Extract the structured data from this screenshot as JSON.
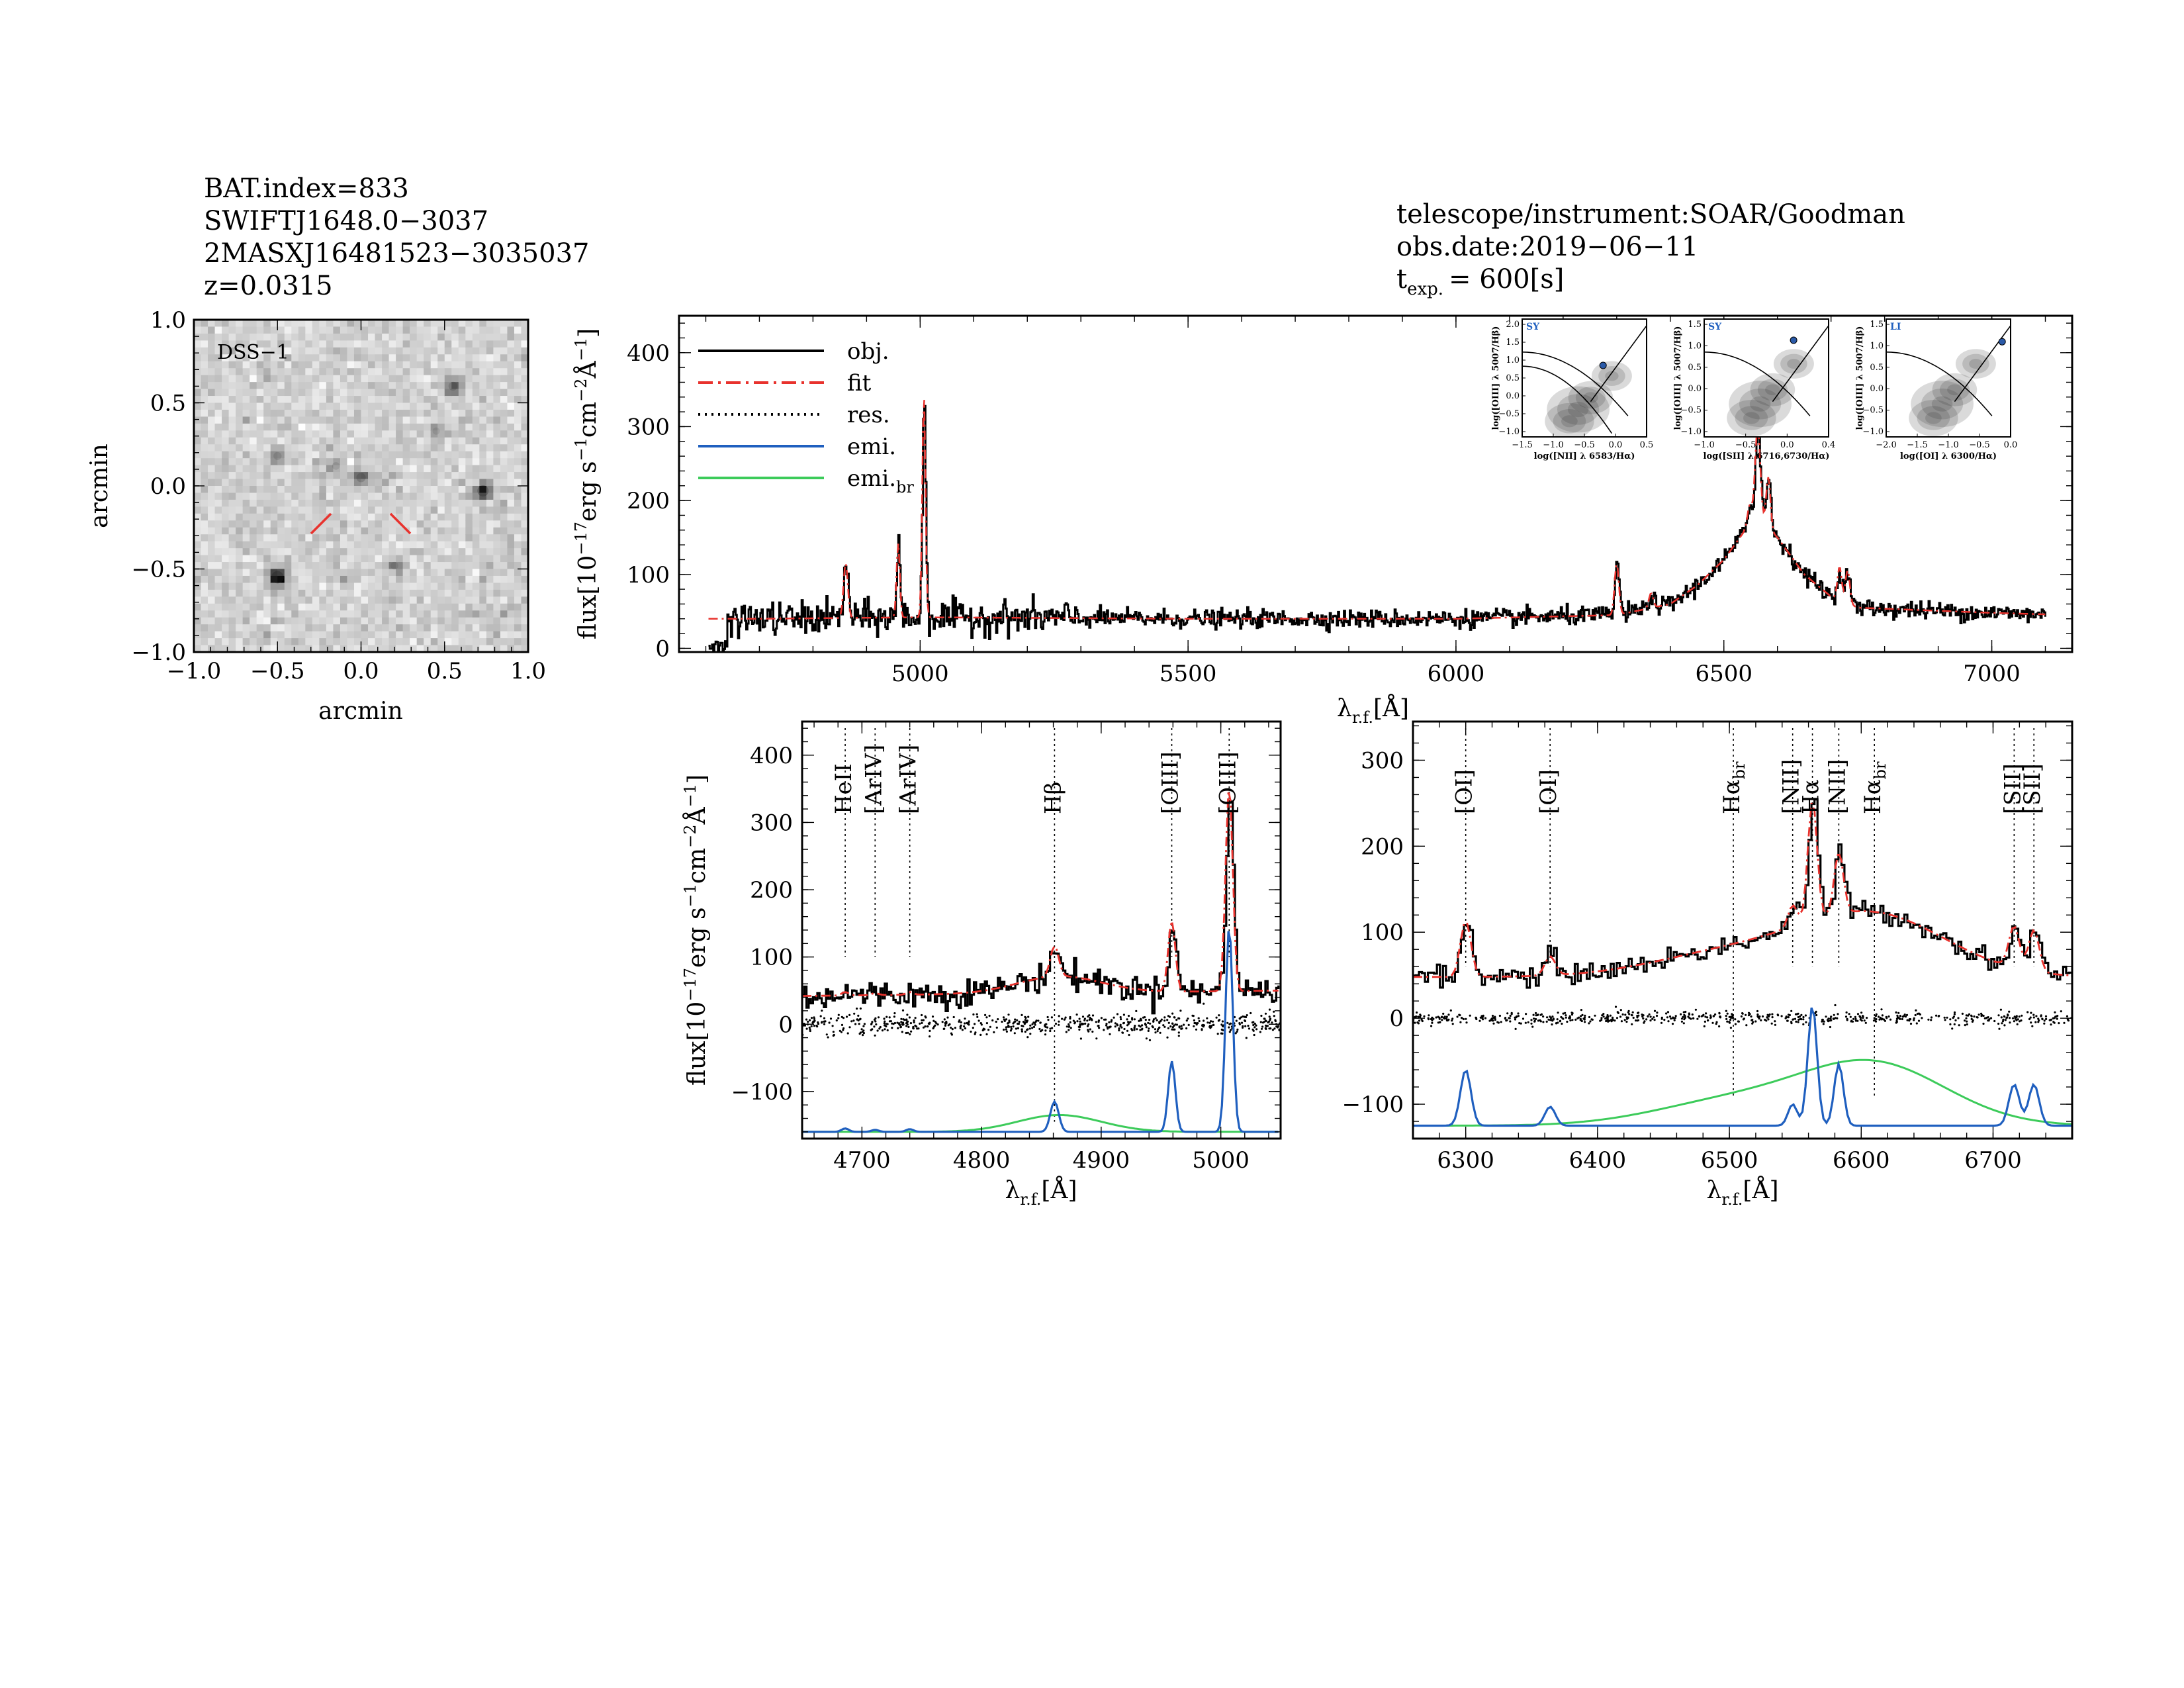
{
  "header_left": {
    "line1": "BAT.index=833",
    "line2": "SWIFTJ1648.0−3037",
    "line3": "2MASXJ16481523−3035037",
    "line4": "z=0.0315"
  },
  "header_right": {
    "line1": "telescope/instrument:SOAR/Goodman",
    "line2": "obs.date:2019−06−11",
    "texp_label": "t",
    "texp_sub": "exp.",
    "texp_value": "= 600[s]"
  },
  "image_panel": {
    "survey_label": "DSS−1",
    "xlabel": "arcmin",
    "ylabel": "arcmin",
    "xticks": [
      "−1.0",
      "−0.5",
      "0.0",
      "0.5",
      "1.0"
    ],
    "yticks": [
      "1.0",
      "0.5",
      "0.0",
      "−0.5",
      "−1.0"
    ],
    "range": [
      -1.0,
      1.0
    ],
    "sources": [
      {
        "x": 0.0,
        "y": 0.05,
        "strength": 0.5
      },
      {
        "x": -0.5,
        "y": -0.55,
        "strength": 0.9
      },
      {
        "x": 0.73,
        "y": -0.03,
        "strength": 0.75
      },
      {
        "x": 0.55,
        "y": 0.6,
        "strength": 0.45
      },
      {
        "x": -0.5,
        "y": 0.18,
        "strength": 0.35
      },
      {
        "x": -0.15,
        "y": 0.12,
        "strength": 0.3
      },
      {
        "x": 0.2,
        "y": -0.48,
        "strength": 0.3
      },
      {
        "x": 0.45,
        "y": 0.33,
        "strength": 0.25
      }
    ],
    "marker_color": "#e8322d"
  },
  "legend": [
    {
      "label": "obj.",
      "color": "#000000",
      "style": "solid"
    },
    {
      "label": "fit",
      "color": "#e8322d",
      "style": "dashdot"
    },
    {
      "label": "res.",
      "color": "#000000",
      "style": "dotted"
    },
    {
      "label": "emi.",
      "color": "#1f5fbf",
      "style": "solid"
    },
    {
      "label": "emi.",
      "label_sub": "br",
      "color": "#3ccb5a",
      "style": "solid"
    }
  ],
  "axis_labels": {
    "flux_main": "flux[10",
    "flux_exp": "−17",
    "flux_rest": "erg s",
    "flux_exp2": "−1",
    "flux_rest2": "cm",
    "flux_exp3": "−2",
    "flux_ang": "Å",
    "flux_exp4": "−1",
    "flux_close": "]",
    "lambda": "λ",
    "lambda_sub": "r.f.",
    "lambda_unit": "[Å]"
  },
  "bpt": [
    {
      "class": "SY",
      "xlabel": "log([NII] λ 6583/Hα)",
      "ylabel": "log([OIII] λ 5007/Hβ)",
      "xticks": [
        "−1.5",
        "−1.0",
        "−0.5",
        "0.0",
        "0.5"
      ],
      "yticks": [
        "2.0",
        "1.5",
        "1.0",
        "0.5",
        "0.0",
        "−0.5",
        "−1.0"
      ],
      "xlim": [
        -1.5,
        0.5
      ],
      "ylim": [
        -1.0,
        2.0
      ],
      "point": [
        -0.2,
        0.82
      ]
    },
    {
      "class": "SY",
      "xlabel": "log([SII] λ 6716,6730/Hα)",
      "ylabel": "log([OIII] λ 5007/Hβ)",
      "xticks": [
        "−1.0",
        "−0.5",
        "0.0",
        "0.4"
      ],
      "yticks": [
        "1.5",
        "1.0",
        "0.5",
        "0.0",
        "−0.5",
        "−1.0"
      ],
      "xlim": [
        -1.2,
        0.4
      ],
      "ylim": [
        -1.0,
        1.5
      ],
      "point": [
        -0.05,
        1.05
      ]
    },
    {
      "class": "LI",
      "xlabel": "log([OI] λ 6300/Hα)",
      "ylabel": "log([OIII] λ 5007/Hβ)",
      "xticks": [
        "−2.0",
        "−1.5",
        "−1.0",
        "−0.5",
        "0.0"
      ],
      "yticks": [
        "1.5",
        "1.0",
        "0.5",
        "0.0",
        "−0.5",
        "−1.0"
      ],
      "xlim": [
        -2.2,
        0.0
      ],
      "ylim": [
        -1.0,
        1.5
      ],
      "point": [
        -0.15,
        1.02
      ]
    }
  ],
  "chart_data": [
    {
      "type": "line",
      "panel": "full-spectrum",
      "xlim": [
        4550,
        7150
      ],
      "ylim": [
        -5,
        450
      ],
      "xticks": [
        5000,
        5500,
        6000,
        6500,
        7000
      ],
      "yticks": [
        0,
        100,
        200,
        300,
        400
      ],
      "continuum": [
        [
          4550,
          40
        ],
        [
          4700,
          40
        ],
        [
          5000,
          42
        ],
        [
          5500,
          40
        ],
        [
          6000,
          40
        ],
        [
          6300,
          45
        ],
        [
          6400,
          60
        ],
        [
          6450,
          85
        ],
        [
          6500,
          120
        ],
        [
          6540,
          160
        ],
        [
          6570,
          170
        ],
        [
          6600,
          150
        ],
        [
          6650,
          100
        ],
        [
          6700,
          70
        ],
        [
          6750,
          55
        ],
        [
          7000,
          48
        ],
        [
          7150,
          45
        ]
      ],
      "lines": [
        {
          "name": "Hβ",
          "center": 4861,
          "amp": 75,
          "sigma": 4
        },
        {
          "name": "[OIII]",
          "center": 4959,
          "amp": 100,
          "sigma": 3
        },
        {
          "name": "[OIII]",
          "center": 5007,
          "amp": 300,
          "sigma": 3
        },
        {
          "name": "[OI]",
          "center": 6300,
          "amp": 70,
          "sigma": 4
        },
        {
          "name": "[OI]",
          "center": 6364,
          "amp": 20,
          "sigma": 4
        },
        {
          "name": "Hα",
          "center": 6563,
          "amp": 130,
          "sigma": 5
        },
        {
          "name": "[NII]",
          "center": 6548,
          "amp": 30,
          "sigma": 4
        },
        {
          "name": "[NII]",
          "center": 6583,
          "amp": 70,
          "sigma": 4
        },
        {
          "name": "[SII]",
          "center": 6716,
          "amp": 45,
          "sigma": 4
        },
        {
          "name": "[SII]",
          "center": 6731,
          "amp": 45,
          "sigma": 4
        }
      ]
    },
    {
      "type": "line",
      "panel": "hbeta-oiii",
      "xlim": [
        4650,
        5050
      ],
      "ylim": [
        -170,
        450
      ],
      "xticks": [
        4700,
        4800,
        4900,
        5000
      ],
      "yticks": [
        -100,
        0,
        100,
        200,
        300,
        400
      ],
      "markers": [
        {
          "label": "HeII",
          "x": 4686,
          "color": "#e8322d"
        },
        {
          "label": "[ArIV]",
          "x": 4711,
          "color": "#e8322d"
        },
        {
          "label": "[ArIV]",
          "x": 4740,
          "color": "#e8322d"
        },
        {
          "label": "Hβ",
          "x": 4861,
          "color": "#000000"
        },
        {
          "label": "[OIII]",
          "x": 4959,
          "color": "#000000"
        },
        {
          "label": "[OIII]",
          "x": 5007,
          "color": "#000000"
        }
      ],
      "emission_offset": -160,
      "narrow": [
        {
          "center": 4686,
          "amp": 5,
          "sigma": 3
        },
        {
          "center": 4711,
          "amp": 3,
          "sigma": 3
        },
        {
          "center": 4740,
          "amp": 4,
          "sigma": 3
        },
        {
          "center": 4861,
          "amp": 45,
          "sigma": 3.5
        },
        {
          "center": 4959,
          "amp": 105,
          "sigma": 3
        },
        {
          "center": 5007,
          "amp": 305,
          "sigma": 3
        }
      ],
      "broad": [
        {
          "center": 4865,
          "amp": 25,
          "sigma": 35
        }
      ],
      "continuum": 42
    },
    {
      "type": "line",
      "panel": "halpha-nii",
      "xlim": [
        6260,
        6760
      ],
      "ylim": [
        -140,
        345
      ],
      "xticks": [
        6300,
        6400,
        6500,
        6600,
        6700
      ],
      "yticks": [
        -100,
        0,
        100,
        200,
        300
      ],
      "markers": [
        {
          "label": "[OI]",
          "x": 6300,
          "color": "#000000"
        },
        {
          "label": "[OI]",
          "x": 6364,
          "color": "#000000"
        },
        {
          "label": "Hα",
          "label_sub": "br",
          "x": 6503,
          "color": "#000000"
        },
        {
          "label": "[NII]",
          "x": 6548,
          "color": "#000000"
        },
        {
          "label": "Hα",
          "x": 6563,
          "color": "#000000"
        },
        {
          "label": "[NII]",
          "x": 6583,
          "color": "#000000"
        },
        {
          "label": "Hα",
          "label_sub": "br",
          "x": 6610,
          "color": "#000000"
        },
        {
          "label": "[SII]",
          "x": 6716,
          "color": "#000000"
        },
        {
          "label": "[SII]",
          "x": 6731,
          "color": "#000000"
        }
      ],
      "emission_offset": -125,
      "narrow": [
        {
          "center": 6300,
          "amp": 65,
          "sigma": 4
        },
        {
          "center": 6364,
          "amp": 22,
          "sigma": 4
        },
        {
          "center": 6548,
          "amp": 25,
          "sigma": 3.5
        },
        {
          "center": 6563,
          "amp": 140,
          "sigma": 3.5
        },
        {
          "center": 6583,
          "amp": 72,
          "sigma": 3.5
        },
        {
          "center": 6716,
          "amp": 48,
          "sigma": 4
        },
        {
          "center": 6731,
          "amp": 48,
          "sigma": 4
        }
      ],
      "broad": [
        {
          "center": 6503,
          "amp": 28,
          "sigma": 60
        },
        {
          "center": 6610,
          "amp": 70,
          "sigma": 55
        }
      ],
      "continuum": 48
    }
  ],
  "colors": {
    "data": "#000000",
    "fit": "#e8322d",
    "narrow": "#1f5fbf",
    "broad": "#3ccb5a",
    "bpt_class": "#1f5fbf",
    "bpt_point": "#2a5aa8"
  }
}
